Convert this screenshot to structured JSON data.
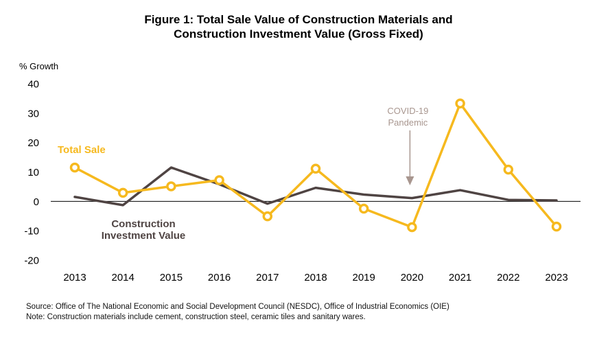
{
  "chart_data": {
    "type": "line",
    "title_line1": "Figure 1: Total Sale Value of Construction Materials and",
    "title_line2": "Construction Investment Value (Gross Fixed)",
    "ylabel": "% Growth",
    "ylim": [
      -20,
      40
    ],
    "yticks": [
      40,
      30,
      20,
      10,
      0,
      -10,
      -20
    ],
    "categories": [
      "2013",
      "2014",
      "2015",
      "2016",
      "2017",
      "2018",
      "2019",
      "2020",
      "2021",
      "2022",
      "2023"
    ],
    "series": [
      {
        "name": "Total Sale",
        "color": "#F6B91E",
        "markers": true,
        "values": [
          11.5,
          2.9,
          5.1,
          7.2,
          -5.1,
          11.1,
          -2.5,
          -8.8,
          33.3,
          10.8,
          -8.6
        ]
      },
      {
        "name_line1": "Construction",
        "name_line2": "Investment Value",
        "color": "#4F4443",
        "markers": false,
        "values": [
          1.5,
          -1.3,
          11.5,
          5.8,
          -0.8,
          4.6,
          2.3,
          1.1,
          3.8,
          0.5,
          0.3
        ]
      }
    ],
    "annotation": {
      "line1": "COVID-19",
      "line2": "Pandemic",
      "category": "2020",
      "color": "#A8968F"
    },
    "grid": false
  },
  "footer": {
    "source": "Source:  Office of The National Economic and Social Development Council (NESDC), Office of Industrial Economics (OIE)",
    "note": "Note: Construction materials include cement, construction steel, ceramic tiles and sanitary wares."
  }
}
